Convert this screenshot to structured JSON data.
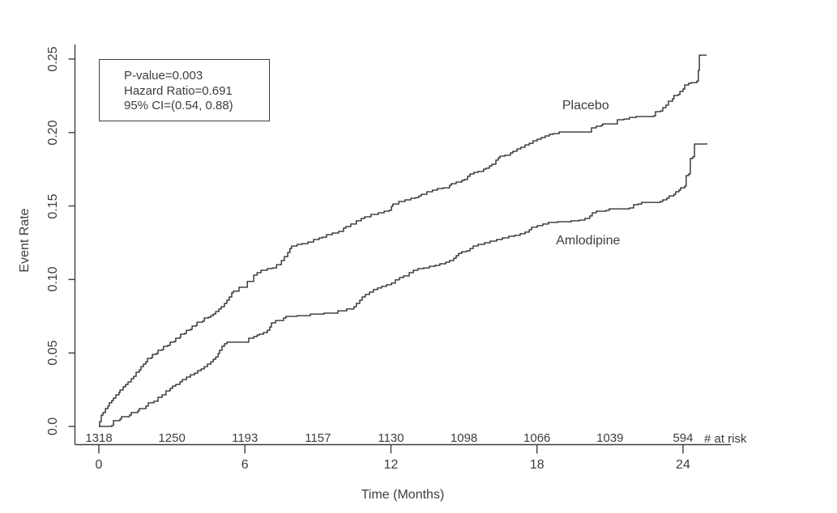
{
  "figure": {
    "background": "#ffffff",
    "text_color": "#3d3d3d",
    "axis_color": "#3d3d3d",
    "curve_color": "#1f1f1f"
  },
  "annotation_box": {
    "lines": [
      "P-value=0.003",
      "Hazard Ratio=0.691",
      "95% CI=(0.54, 0.88)"
    ]
  },
  "chart_data": {
    "type": "line",
    "subtype": "kaplan-meier-cumulative-event-rate",
    "title": "",
    "xlabel": "Time (Months)",
    "ylabel": "Event Rate",
    "xlim": [
      0,
      26
    ],
    "ylim": [
      0,
      0.26
    ],
    "x_ticks": [
      0,
      6,
      12,
      18,
      24
    ],
    "y_ticks": [
      "0.0",
      "0.05",
      "0.10",
      "0.15",
      "0.20",
      "0.25"
    ],
    "grid": false,
    "legend_position": "inline-labels",
    "stats": {
      "p_value": "0.003",
      "hazard_ratio": "0.691",
      "ci_95": "(0.54, 0.88)"
    },
    "at_risk": {
      "label": "# at risk",
      "months": [
        0,
        3,
        6,
        9,
        12,
        15,
        18,
        21,
        24
      ],
      "values": [
        "1318",
        "1250",
        "1193",
        "1157",
        "1130",
        "1098",
        "1066",
        "1039",
        "594"
      ]
    },
    "series": [
      {
        "name": "Placebo",
        "label_position": {
          "month": 20.0,
          "rate": 0.218
        },
        "points": [
          [
            0,
            0
          ],
          [
            0.03,
            0.0033
          ],
          [
            0.1,
            0.0077
          ],
          [
            0.17,
            0.0094
          ],
          [
            0.27,
            0.0121
          ],
          [
            0.37,
            0.0138
          ],
          [
            0.43,
            0.016
          ],
          [
            0.53,
            0.0176
          ],
          [
            0.6,
            0.0193
          ],
          [
            0.7,
            0.0215
          ],
          [
            0.83,
            0.0231
          ],
          [
            0.87,
            0.0248
          ],
          [
            1.0,
            0.027
          ],
          [
            1.1,
            0.0286
          ],
          [
            1.2,
            0.0303
          ],
          [
            1.33,
            0.0325
          ],
          [
            1.43,
            0.0341
          ],
          [
            1.53,
            0.0369
          ],
          [
            1.66,
            0.0385
          ],
          [
            1.73,
            0.0407
          ],
          [
            1.83,
            0.0424
          ],
          [
            1.93,
            0.044
          ],
          [
            2.0,
            0.0463
          ],
          [
            2.16,
            0.0468
          ],
          [
            2.2,
            0.049
          ],
          [
            2.36,
            0.0496
          ],
          [
            2.43,
            0.0518
          ],
          [
            2.6,
            0.0523
          ],
          [
            2.66,
            0.0545
          ],
          [
            2.83,
            0.0551
          ],
          [
            2.93,
            0.0573
          ],
          [
            3.1,
            0.0578
          ],
          [
            3.16,
            0.06
          ],
          [
            3.33,
            0.0606
          ],
          [
            3.36,
            0.0628
          ],
          [
            3.53,
            0.0633
          ],
          [
            3.6,
            0.0655
          ],
          [
            3.76,
            0.0661
          ],
          [
            3.83,
            0.0683
          ],
          [
            4.0,
            0.0688
          ],
          [
            4.03,
            0.071
          ],
          [
            4.26,
            0.0716
          ],
          [
            4.33,
            0.0738
          ],
          [
            4.5,
            0.0743
          ],
          [
            4.6,
            0.0754
          ],
          [
            4.7,
            0.0765
          ],
          [
            4.8,
            0.0782
          ],
          [
            4.93,
            0.0799
          ],
          [
            5.03,
            0.0815
          ],
          [
            5.16,
            0.0837
          ],
          [
            5.26,
            0.0859
          ],
          [
            5.36,
            0.0881
          ],
          [
            5.46,
            0.0909
          ],
          [
            5.53,
            0.092
          ],
          [
            5.76,
            0.0947
          ],
          [
            6.1,
            0.0986
          ],
          [
            6.36,
            0.103
          ],
          [
            6.5,
            0.1046
          ],
          [
            6.66,
            0.1063
          ],
          [
            6.92,
            0.1074
          ],
          [
            7.12,
            0.1079
          ],
          [
            7.3,
            0.1101
          ],
          [
            7.5,
            0.1129
          ],
          [
            7.62,
            0.1156
          ],
          [
            7.76,
            0.1184
          ],
          [
            7.85,
            0.1211
          ],
          [
            7.92,
            0.1228
          ],
          [
            8.15,
            0.1239
          ],
          [
            8.35,
            0.1244
          ],
          [
            8.59,
            0.1255
          ],
          [
            8.82,
            0.1272
          ],
          [
            9.05,
            0.1283
          ],
          [
            9.19,
            0.1288
          ],
          [
            9.35,
            0.1305
          ],
          [
            9.59,
            0.1316
          ],
          [
            9.85,
            0.1327
          ],
          [
            10.05,
            0.1349
          ],
          [
            10.15,
            0.136
          ],
          [
            10.35,
            0.1377
          ],
          [
            10.58,
            0.1399
          ],
          [
            10.78,
            0.1415
          ],
          [
            10.92,
            0.1426
          ],
          [
            11.18,
            0.1443
          ],
          [
            11.48,
            0.1454
          ],
          [
            11.72,
            0.1465
          ],
          [
            11.92,
            0.147
          ],
          [
            12.02,
            0.1498
          ],
          [
            12.08,
            0.1514
          ],
          [
            12.32,
            0.1531
          ],
          [
            12.58,
            0.1542
          ],
          [
            12.82,
            0.1553
          ],
          [
            13.02,
            0.1558
          ],
          [
            13.15,
            0.1569
          ],
          [
            13.25,
            0.158
          ],
          [
            13.48,
            0.1597
          ],
          [
            13.71,
            0.1608
          ],
          [
            13.91,
            0.1619
          ],
          [
            14.15,
            0.1624
          ],
          [
            14.41,
            0.1641
          ],
          [
            14.48,
            0.1652
          ],
          [
            14.68,
            0.1663
          ],
          [
            14.91,
            0.1674
          ],
          [
            15.01,
            0.168
          ],
          [
            15.15,
            0.1702
          ],
          [
            15.25,
            0.1718
          ],
          [
            15.41,
            0.1729
          ],
          [
            15.58,
            0.1735
          ],
          [
            15.81,
            0.1751
          ],
          [
            15.91,
            0.1757
          ],
          [
            16.05,
            0.1773
          ],
          [
            16.15,
            0.1784
          ],
          [
            16.31,
            0.1812
          ],
          [
            16.41,
            0.1828
          ],
          [
            16.48,
            0.1839
          ],
          [
            16.68,
            0.1845
          ],
          [
            16.91,
            0.1861
          ],
          [
            17.01,
            0.1872
          ],
          [
            17.18,
            0.1889
          ],
          [
            17.34,
            0.19
          ],
          [
            17.51,
            0.1916
          ],
          [
            17.68,
            0.1927
          ],
          [
            17.84,
            0.1944
          ],
          [
            18.01,
            0.1955
          ],
          [
            18.17,
            0.1966
          ],
          [
            18.34,
            0.1977
          ],
          [
            18.51,
            0.1988
          ],
          [
            18.67,
            0.1993
          ],
          [
            18.91,
            0.2004
          ],
          [
            20.07,
            0.2004
          ],
          [
            20.24,
            0.2032
          ],
          [
            20.44,
            0.2043
          ],
          [
            20.64,
            0.2048
          ],
          [
            20.7,
            0.2059
          ],
          [
            21.14,
            0.2059
          ],
          [
            21.3,
            0.2087
          ],
          [
            21.57,
            0.2092
          ],
          [
            21.8,
            0.2103
          ],
          [
            22.07,
            0.2109
          ],
          [
            22.8,
            0.2114
          ],
          [
            22.87,
            0.2142
          ],
          [
            23.07,
            0.2147
          ],
          [
            23.17,
            0.2169
          ],
          [
            23.3,
            0.2186
          ],
          [
            23.4,
            0.2213
          ],
          [
            23.57,
            0.223
          ],
          [
            23.63,
            0.2252
          ],
          [
            23.8,
            0.2258
          ],
          [
            23.87,
            0.228
          ],
          [
            24.0,
            0.2296
          ],
          [
            24.07,
            0.2324
          ],
          [
            24.23,
            0.2335
          ],
          [
            24.33,
            0.234
          ],
          [
            24.57,
            0.2351
          ],
          [
            24.63,
            0.2423
          ],
          [
            24.67,
            0.2527
          ],
          [
            24.97,
            0.2527
          ]
        ]
      },
      {
        "name": "Amlodipine",
        "label_position": {
          "month": 20.1,
          "rate": 0.126
        },
        "points": [
          [
            0,
            0
          ],
          [
            0.53,
            0.0006
          ],
          [
            0.6,
            0.0039
          ],
          [
            0.87,
            0.005
          ],
          [
            0.93,
            0.0066
          ],
          [
            1.26,
            0.0077
          ],
          [
            1.33,
            0.0094
          ],
          [
            1.6,
            0.0105
          ],
          [
            1.66,
            0.0121
          ],
          [
            1.93,
            0.0138
          ],
          [
            2.03,
            0.016
          ],
          [
            2.26,
            0.0171
          ],
          [
            2.43,
            0.0198
          ],
          [
            2.6,
            0.0215
          ],
          [
            2.76,
            0.0242
          ],
          [
            2.93,
            0.0259
          ],
          [
            3.03,
            0.0275
          ],
          [
            3.16,
            0.0286
          ],
          [
            3.33,
            0.0303
          ],
          [
            3.43,
            0.0319
          ],
          [
            3.6,
            0.0336
          ],
          [
            3.76,
            0.0352
          ],
          [
            3.93,
            0.0363
          ],
          [
            4.06,
            0.038
          ],
          [
            4.2,
            0.0391
          ],
          [
            4.33,
            0.0407
          ],
          [
            4.46,
            0.0424
          ],
          [
            4.6,
            0.044
          ],
          [
            4.7,
            0.0457
          ],
          [
            4.8,
            0.0473
          ],
          [
            4.9,
            0.0496
          ],
          [
            4.96,
            0.0518
          ],
          [
            5.06,
            0.0545
          ],
          [
            5.16,
            0.0562
          ],
          [
            5.26,
            0.0573
          ],
          [
            6.09,
            0.0573
          ],
          [
            6.16,
            0.06
          ],
          [
            6.36,
            0.0611
          ],
          [
            6.5,
            0.0622
          ],
          [
            6.6,
            0.0628
          ],
          [
            6.76,
            0.0639
          ],
          [
            6.92,
            0.0655
          ],
          [
            7.02,
            0.0677
          ],
          [
            7.09,
            0.0705
          ],
          [
            7.26,
            0.0721
          ],
          [
            7.59,
            0.0738
          ],
          [
            7.69,
            0.0749
          ],
          [
            8.15,
            0.0754
          ],
          [
            8.69,
            0.0765
          ],
          [
            9.25,
            0.0771
          ],
          [
            9.82,
            0.0787
          ],
          [
            10.18,
            0.0799
          ],
          [
            10.48,
            0.0815
          ],
          [
            10.58,
            0.0837
          ],
          [
            10.72,
            0.0859
          ],
          [
            10.82,
            0.0881
          ],
          [
            10.95,
            0.0898
          ],
          [
            11.12,
            0.0914
          ],
          [
            11.28,
            0.0931
          ],
          [
            11.45,
            0.0942
          ],
          [
            11.62,
            0.0953
          ],
          [
            11.82,
            0.0964
          ],
          [
            12.02,
            0.0975
          ],
          [
            12.18,
            0.0997
          ],
          [
            12.35,
            0.1013
          ],
          [
            12.52,
            0.1024
          ],
          [
            12.75,
            0.1046
          ],
          [
            12.92,
            0.1063
          ],
          [
            13.11,
            0.1074
          ],
          [
            13.35,
            0.1079
          ],
          [
            13.58,
            0.109
          ],
          [
            13.81,
            0.1096
          ],
          [
            14.01,
            0.1107
          ],
          [
            14.25,
            0.1118
          ],
          [
            14.41,
            0.1129
          ],
          [
            14.58,
            0.1145
          ],
          [
            14.68,
            0.1162
          ],
          [
            14.78,
            0.1178
          ],
          [
            14.91,
            0.1189
          ],
          [
            15.11,
            0.1195
          ],
          [
            15.25,
            0.1211
          ],
          [
            15.38,
            0.1228
          ],
          [
            15.58,
            0.1239
          ],
          [
            15.85,
            0.125
          ],
          [
            16.08,
            0.1261
          ],
          [
            16.34,
            0.1272
          ],
          [
            16.58,
            0.1283
          ],
          [
            16.84,
            0.1294
          ],
          [
            17.08,
            0.13
          ],
          [
            17.31,
            0.1311
          ],
          [
            17.51,
            0.1322
          ],
          [
            17.68,
            0.1338
          ],
          [
            17.78,
            0.1355
          ],
          [
            18.01,
            0.1366
          ],
          [
            18.24,
            0.1377
          ],
          [
            18.47,
            0.1388
          ],
          [
            18.84,
            0.1393
          ],
          [
            19.07,
            0.1393
          ],
          [
            19.41,
            0.1399
          ],
          [
            19.74,
            0.1404
          ],
          [
            19.97,
            0.1415
          ],
          [
            20.17,
            0.1432
          ],
          [
            20.27,
            0.1454
          ],
          [
            20.44,
            0.1465
          ],
          [
            20.84,
            0.147
          ],
          [
            20.97,
            0.1481
          ],
          [
            21.8,
            0.1487
          ],
          [
            21.97,
            0.1509
          ],
          [
            22.14,
            0.1514
          ],
          [
            22.3,
            0.1525
          ],
          [
            23.07,
            0.1531
          ],
          [
            23.17,
            0.1542
          ],
          [
            23.33,
            0.1553
          ],
          [
            23.43,
            0.1569
          ],
          [
            23.63,
            0.158
          ],
          [
            23.7,
            0.1597
          ],
          [
            23.83,
            0.1608
          ],
          [
            23.9,
            0.1624
          ],
          [
            24.07,
            0.1635
          ],
          [
            24.13,
            0.1707
          ],
          [
            24.23,
            0.1718
          ],
          [
            24.3,
            0.1823
          ],
          [
            24.4,
            0.1834
          ],
          [
            24.47,
            0.1922
          ],
          [
            24.97,
            0.1927
          ]
        ]
      }
    ]
  }
}
